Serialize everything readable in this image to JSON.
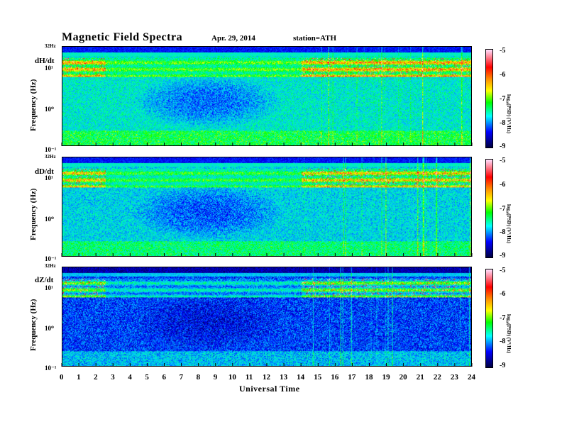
{
  "header": {
    "title": "Magnetic  Field  Spectra",
    "date": "Apr. 29, 2014",
    "station": "station=ATH"
  },
  "chart_data": [
    {
      "type": "heatmap",
      "component": "dH/dt",
      "ylabel": "Frequency (Hz)",
      "xlim": [
        0,
        24
      ],
      "ylim": [
        0.1,
        32
      ],
      "yscale": "log",
      "yticks": [
        "10⁻¹",
        "10⁰",
        "10¹"
      ],
      "ytop_label": "32Hz",
      "colorbar": {
        "label": "log₁₀(PSD) (V²/Hz)",
        "range": [
          -9,
          -5
        ],
        "ticks": [
          "-5",
          "-6",
          "-7",
          "-8",
          "-9"
        ]
      }
    },
    {
      "type": "heatmap",
      "component": "dD/dt",
      "ylabel": "Frequency (Hz)",
      "xlim": [
        0,
        24
      ],
      "ylim": [
        0.1,
        32
      ],
      "yscale": "log",
      "yticks": [
        "10⁻¹",
        "10⁰",
        "10¹"
      ],
      "ytop_label": "32Hz",
      "colorbar": {
        "label": "log₁₀(PSD) (V²/Hz)",
        "range": [
          -9,
          -5
        ],
        "ticks": [
          "-5",
          "-6",
          "-7",
          "-8",
          "-9"
        ]
      }
    },
    {
      "type": "heatmap",
      "component": "dZ/dt",
      "ylabel": "Frequency (Hz)",
      "xlim": [
        0,
        24
      ],
      "ylim": [
        0.1,
        32
      ],
      "yscale": "log",
      "yticks": [
        "10⁻¹",
        "10⁰",
        "10¹"
      ],
      "ytop_label": "32Hz",
      "colorbar": {
        "label": "log₁₀(PSD) (V²/Hz)",
        "range": [
          -9,
          -5
        ],
        "ticks": [
          "-5",
          "-6",
          "-7",
          "-8",
          "-9"
        ]
      }
    }
  ],
  "x_axis": {
    "label": "Universal Time",
    "ticks": [
      "0",
      "1",
      "2",
      "3",
      "4",
      "5",
      "6",
      "7",
      "8",
      "9",
      "10",
      "11",
      "12",
      "13",
      "14",
      "15",
      "16",
      "17",
      "18",
      "19",
      "20",
      "21",
      "22",
      "23",
      "24"
    ]
  }
}
